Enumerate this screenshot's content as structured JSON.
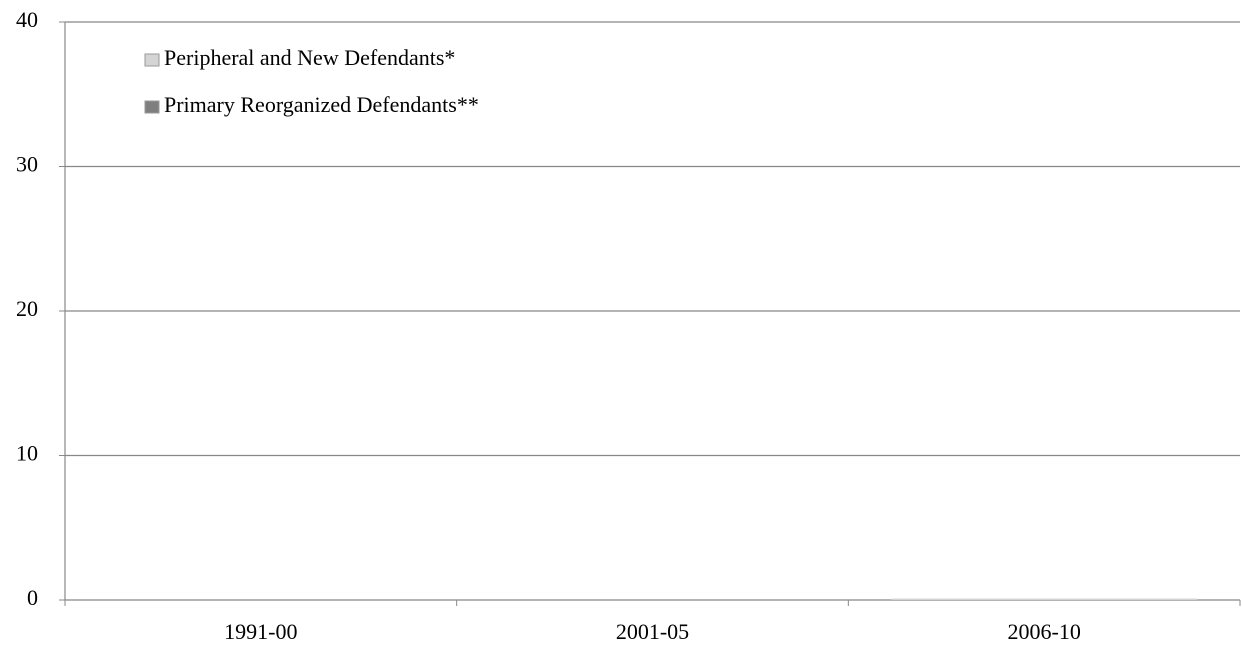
{
  "chart_data": {
    "type": "stacked_bar",
    "categories": [
      "1991-00",
      "2001-05",
      "2006-10"
    ],
    "series": [
      {
        "name": "Peripheral and New Defendants*",
        "color": "#d4d4d4",
        "values": [
          0,
          0,
          0.1
        ]
      },
      {
        "name": "Primary Reorganized Defendants**",
        "color": "#7f7f7f",
        "values": [
          0,
          0,
          0
        ]
      }
    ],
    "ylim": [
      0,
      40
    ],
    "yticks": [
      0,
      10,
      20,
      30,
      40
    ],
    "grid": true
  }
}
